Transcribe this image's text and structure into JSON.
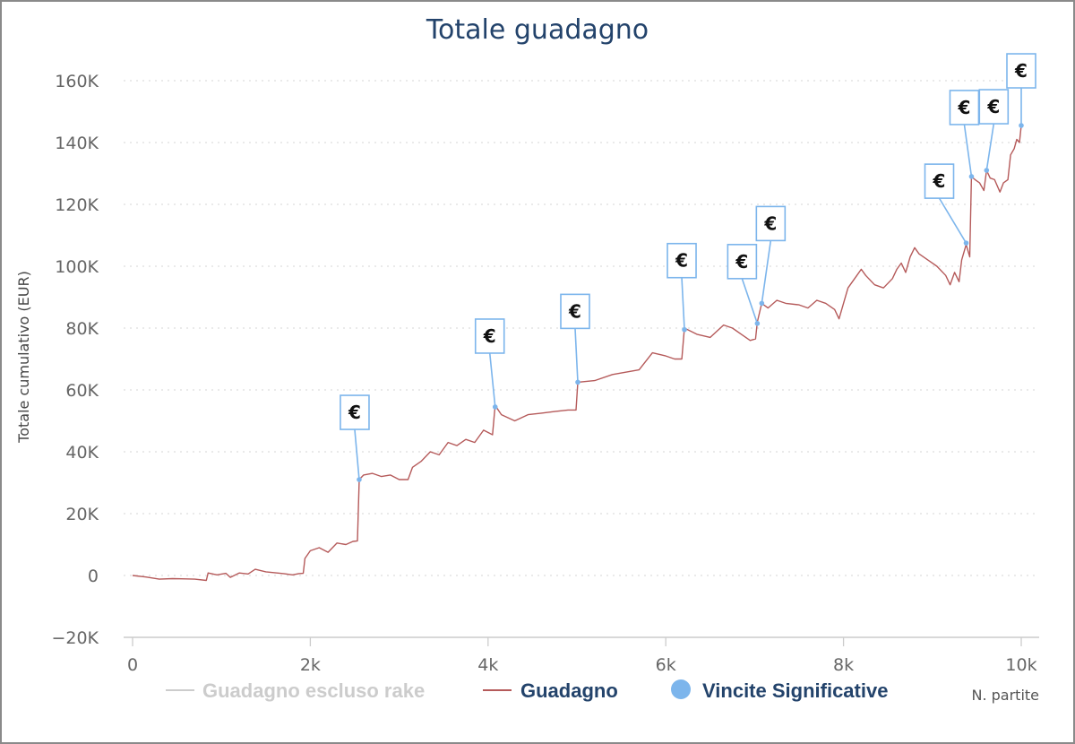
{
  "chart_data": {
    "type": "line",
    "title": "Totale guadagno",
    "xlabel": "N. partite",
    "ylabel": "Totale cumulativo (EUR)",
    "xlim": [
      0,
      10200
    ],
    "ylim": [
      -20000,
      160000
    ],
    "x_ticks": [
      0,
      2000,
      4000,
      6000,
      8000,
      10000
    ],
    "x_tick_labels": [
      "0",
      "2k",
      "4k",
      "6k",
      "8k",
      "10k"
    ],
    "y_ticks": [
      -20000,
      0,
      20000,
      40000,
      60000,
      80000,
      100000,
      120000,
      140000,
      160000
    ],
    "y_tick_labels": [
      "−20K",
      "0",
      "20K",
      "40K",
      "60K",
      "80K",
      "100K",
      "120K",
      "140K",
      "160K"
    ],
    "grid": true,
    "legend_position": "bottom",
    "colors": {
      "guadagno": "#b55a5a",
      "escluso_rake": "#c8c8c8",
      "vincite": "#7cb5ec",
      "title": "#23436b"
    },
    "legend": [
      {
        "key": "escluso_rake",
        "label": "Guadagno escluso rake",
        "symbol": "line",
        "color": "#cccccc",
        "hidden": true
      },
      {
        "key": "guadagno",
        "label": "Guadagno",
        "symbol": "line",
        "color": "#23436b"
      },
      {
        "key": "vincite",
        "label": "Vincite Significative",
        "symbol": "dot",
        "color": "#23436b"
      }
    ],
    "series": [
      {
        "name": "Guadagno",
        "points": [
          [
            0,
            0
          ],
          [
            150,
            -500
          ],
          [
            300,
            -1200
          ],
          [
            450,
            -1000
          ],
          [
            600,
            -1100
          ],
          [
            700,
            -1200
          ],
          [
            830,
            -1600
          ],
          [
            850,
            800
          ],
          [
            950,
            200
          ],
          [
            1050,
            700
          ],
          [
            1100,
            -600
          ],
          [
            1200,
            800
          ],
          [
            1300,
            500
          ],
          [
            1380,
            2000
          ],
          [
            1500,
            1200
          ],
          [
            1600,
            900
          ],
          [
            1700,
            600
          ],
          [
            1800,
            200
          ],
          [
            1870,
            600
          ],
          [
            1920,
            700
          ],
          [
            1940,
            5500
          ],
          [
            2000,
            8000
          ],
          [
            2100,
            9000
          ],
          [
            2200,
            7500
          ],
          [
            2300,
            10500
          ],
          [
            2400,
            10000
          ],
          [
            2480,
            11000
          ],
          [
            2530,
            11200
          ],
          [
            2550,
            31000
          ],
          [
            2600,
            32500
          ],
          [
            2700,
            33000
          ],
          [
            2800,
            32000
          ],
          [
            2900,
            32500
          ],
          [
            3000,
            31000
          ],
          [
            3100,
            31000
          ],
          [
            3150,
            35000
          ],
          [
            3250,
            37000
          ],
          [
            3350,
            40000
          ],
          [
            3450,
            39000
          ],
          [
            3550,
            43000
          ],
          [
            3650,
            42000
          ],
          [
            3750,
            44000
          ],
          [
            3850,
            43000
          ],
          [
            3950,
            47000
          ],
          [
            4050,
            45500
          ],
          [
            4080,
            55000
          ],
          [
            4150,
            52000
          ],
          [
            4300,
            50000
          ],
          [
            4450,
            52000
          ],
          [
            4600,
            52500
          ],
          [
            4750,
            53000
          ],
          [
            4900,
            53500
          ],
          [
            4990,
            53500
          ],
          [
            5010,
            62500
          ],
          [
            5200,
            63000
          ],
          [
            5400,
            65000
          ],
          [
            5600,
            66000
          ],
          [
            5700,
            66500
          ],
          [
            5850,
            72000
          ],
          [
            6000,
            71000
          ],
          [
            6100,
            70000
          ],
          [
            6180,
            70000
          ],
          [
            6210,
            80000
          ],
          [
            6350,
            78000
          ],
          [
            6500,
            77000
          ],
          [
            6650,
            81000
          ],
          [
            6750,
            80000
          ],
          [
            6850,
            78000
          ],
          [
            6950,
            76000
          ],
          [
            7010,
            76500
          ],
          [
            7030,
            82000
          ],
          [
            7080,
            88000
          ],
          [
            7150,
            86500
          ],
          [
            7250,
            89000
          ],
          [
            7350,
            88000
          ],
          [
            7500,
            87500
          ],
          [
            7600,
            86500
          ],
          [
            7700,
            89000
          ],
          [
            7800,
            88000
          ],
          [
            7900,
            86000
          ],
          [
            7950,
            83000
          ],
          [
            8000,
            88000
          ],
          [
            8050,
            93000
          ],
          [
            8150,
            97000
          ],
          [
            8200,
            99000
          ],
          [
            8250,
            97000
          ],
          [
            8350,
            94000
          ],
          [
            8450,
            93000
          ],
          [
            8550,
            96000
          ],
          [
            8600,
            99000
          ],
          [
            8650,
            101000
          ],
          [
            8700,
            98000
          ],
          [
            8750,
            103000
          ],
          [
            8800,
            106000
          ],
          [
            8850,
            104000
          ],
          [
            8950,
            102000
          ],
          [
            9050,
            100000
          ],
          [
            9150,
            97000
          ],
          [
            9200,
            94000
          ],
          [
            9250,
            98000
          ],
          [
            9300,
            95000
          ],
          [
            9330,
            102000
          ],
          [
            9380,
            107000
          ],
          [
            9420,
            103000
          ],
          [
            9440,
            129000
          ],
          [
            9480,
            128000
          ],
          [
            9530,
            127000
          ],
          [
            9580,
            124500
          ],
          [
            9610,
            131000
          ],
          [
            9650,
            128500
          ],
          [
            9700,
            128000
          ],
          [
            9760,
            124000
          ],
          [
            9800,
            127000
          ],
          [
            9850,
            128000
          ],
          [
            9880,
            136000
          ],
          [
            9920,
            138000
          ],
          [
            9950,
            141000
          ],
          [
            9980,
            140000
          ],
          [
            10000,
            145500
          ]
        ]
      },
      {
        "name": "Vincite Significative",
        "label": "€",
        "points": [
          [
            2550,
            31000
          ],
          [
            4080,
            54500
          ],
          [
            5010,
            62500
          ],
          [
            6210,
            79500
          ],
          [
            7030,
            81500
          ],
          [
            7080,
            88000
          ],
          [
            9380,
            107500
          ],
          [
            9440,
            129000
          ],
          [
            9610,
            131000
          ],
          [
            10000,
            145500
          ]
        ]
      }
    ]
  }
}
